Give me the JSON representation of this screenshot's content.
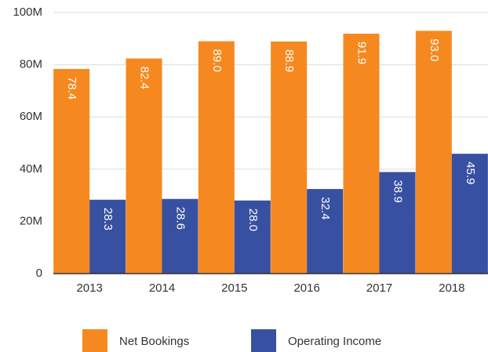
{
  "chart_data": {
    "type": "bar",
    "categories": [
      "2013",
      "2014",
      "2015",
      "2016",
      "2017",
      "2018"
    ],
    "series": [
      {
        "name": "Net Bookings",
        "color": "#f5891f",
        "values": [
          78.4,
          82.4,
          89.0,
          88.9,
          91.9,
          93.0
        ],
        "value_labels": [
          "78.4",
          "82.4",
          "89.0",
          "88.9",
          "91.9",
          "93.0"
        ]
      },
      {
        "name": "Operating Income",
        "color": "#3850a1",
        "values": [
          28.3,
          28.6,
          28.0,
          32.4,
          38.9,
          45.9
        ],
        "value_labels": [
          "28.3",
          "28.6",
          "28.0",
          "32.4",
          "38.9",
          "45.9"
        ]
      }
    ],
    "ylim": [
      0,
      100
    ],
    "yticks": [
      0,
      {
        "value": 20,
        "label": "20M"
      },
      {
        "value": 40,
        "label": "40M"
      },
      {
        "value": 60,
        "label": "60M"
      },
      {
        "value": 80,
        "label": "80M"
      },
      {
        "value": 100,
        "label": "100M"
      }
    ],
    "grid": true
  }
}
